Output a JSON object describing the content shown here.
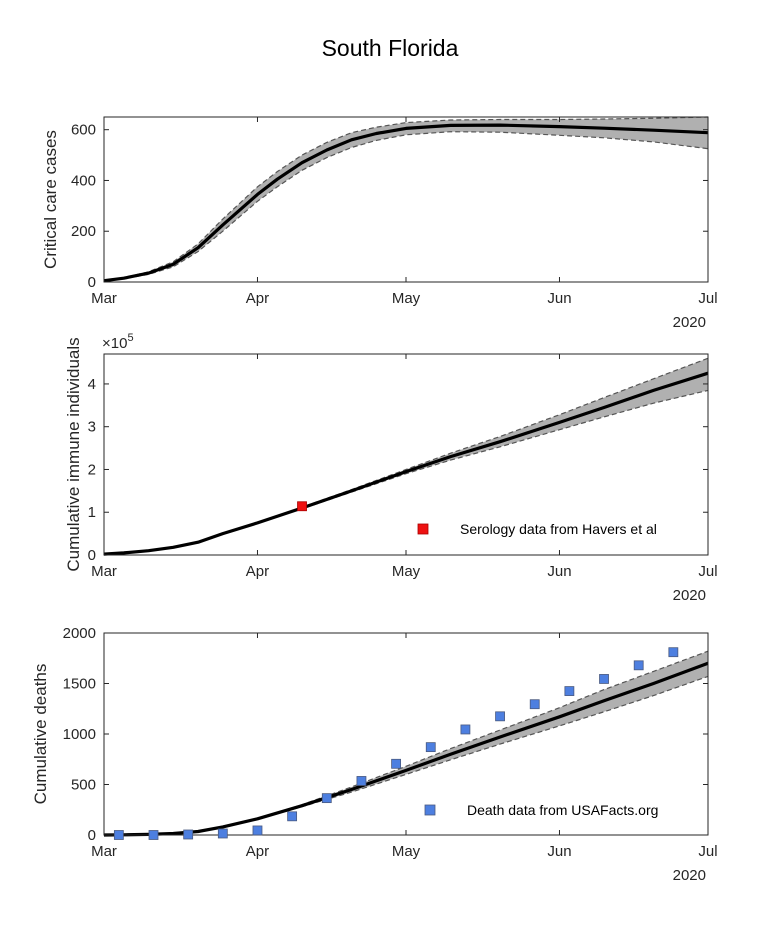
{
  "figure": {
    "title": "South Florida"
  },
  "colors": {
    "band_fill": "#b0b0b0",
    "band_edge": "#555555",
    "median_line": "#000000",
    "serology_marker": "#ee1111",
    "death_marker": "#4d7fe0",
    "axes": "#262626"
  },
  "chart_data": [
    {
      "type": "line",
      "ylabel": "Critical care cases",
      "xlabel": "",
      "x_type": "date",
      "xlim": [
        "2020-03-01",
        "2020-07-01"
      ],
      "ylim": [
        0,
        650
      ],
      "x_ticks": [
        {
          "date": "2020-03-01",
          "label": "Mar"
        },
        {
          "date": "2020-04-01",
          "label": "Apr"
        },
        {
          "date": "2020-05-01",
          "label": "May"
        },
        {
          "date": "2020-06-01",
          "label": "Jun"
        },
        {
          "date": "2020-07-01",
          "label": "Jul"
        }
      ],
      "x_year_label": "2020",
      "y_ticks": [
        0,
        200,
        400,
        600
      ],
      "y_tick_labels": [
        "0",
        "200",
        "400",
        "600"
      ],
      "y_exponent_label": "",
      "grid": false,
      "series": [
        {
          "role": "median",
          "x": [
            "2020-03-01",
            "2020-03-05",
            "2020-03-10",
            "2020-03-15",
            "2020-03-20",
            "2020-03-25",
            "2020-04-01",
            "2020-04-05",
            "2020-04-10",
            "2020-04-15",
            "2020-04-20",
            "2020-04-25",
            "2020-05-01",
            "2020-05-10",
            "2020-05-20",
            "2020-06-01",
            "2020-06-10",
            "2020-06-20",
            "2020-07-01"
          ],
          "y": [
            5,
            15,
            35,
            70,
            135,
            225,
            345,
            405,
            470,
            520,
            560,
            585,
            605,
            617,
            618,
            612,
            606,
            598,
            588
          ]
        },
        {
          "role": "upper",
          "x": [
            "2020-03-01",
            "2020-03-05",
            "2020-03-10",
            "2020-03-15",
            "2020-03-20",
            "2020-03-25",
            "2020-04-01",
            "2020-04-05",
            "2020-04-10",
            "2020-04-15",
            "2020-04-20",
            "2020-04-25",
            "2020-05-01",
            "2020-05-10",
            "2020-05-20",
            "2020-06-01",
            "2020-06-10",
            "2020-06-20",
            "2020-07-01"
          ],
          "y": [
            6,
            17,
            40,
            80,
            150,
            248,
            375,
            435,
            500,
            550,
            588,
            610,
            628,
            638,
            640,
            640,
            642,
            645,
            650
          ]
        },
        {
          "role": "lower",
          "x": [
            "2020-03-01",
            "2020-03-05",
            "2020-03-10",
            "2020-03-15",
            "2020-03-20",
            "2020-03-25",
            "2020-04-01",
            "2020-04-05",
            "2020-04-10",
            "2020-04-15",
            "2020-04-20",
            "2020-04-25",
            "2020-05-01",
            "2020-05-10",
            "2020-05-20",
            "2020-06-01",
            "2020-06-10",
            "2020-06-20",
            "2020-07-01"
          ],
          "y": [
            4,
            13,
            30,
            60,
            120,
            200,
            318,
            375,
            440,
            490,
            530,
            558,
            580,
            592,
            590,
            578,
            568,
            552,
            525
          ]
        }
      ],
      "observations": null
    },
    {
      "type": "line",
      "ylabel": "Cumulative immune individuals",
      "xlabel": "",
      "x_type": "date",
      "xlim": [
        "2020-03-01",
        "2020-07-01"
      ],
      "ylim": [
        0,
        4.7
      ],
      "x_ticks": [
        {
          "date": "2020-03-01",
          "label": "Mar"
        },
        {
          "date": "2020-04-01",
          "label": "Apr"
        },
        {
          "date": "2020-05-01",
          "label": "May"
        },
        {
          "date": "2020-06-01",
          "label": "Jun"
        },
        {
          "date": "2020-07-01",
          "label": "Jul"
        }
      ],
      "x_year_label": "2020",
      "y_ticks": [
        0,
        1,
        2,
        3,
        4
      ],
      "y_tick_labels": [
        "0",
        "1",
        "2",
        "3",
        "4"
      ],
      "y_exponent_label": "×10",
      "y_exponent_power": "5",
      "grid": false,
      "series": [
        {
          "role": "median",
          "x": [
            "2020-03-01",
            "2020-03-05",
            "2020-03-10",
            "2020-03-15",
            "2020-03-20",
            "2020-03-25",
            "2020-04-01",
            "2020-04-10",
            "2020-04-20",
            "2020-05-01",
            "2020-05-10",
            "2020-05-20",
            "2020-06-01",
            "2020-06-10",
            "2020-06-20",
            "2020-07-01"
          ],
          "y": [
            0.02,
            0.05,
            0.1,
            0.18,
            0.3,
            0.5,
            0.75,
            1.1,
            1.5,
            1.95,
            2.3,
            2.65,
            3.1,
            3.45,
            3.85,
            4.25
          ]
        },
        {
          "role": "upper",
          "x": [
            "2020-03-01",
            "2020-03-05",
            "2020-03-10",
            "2020-03-15",
            "2020-03-20",
            "2020-03-25",
            "2020-04-01",
            "2020-04-10",
            "2020-04-20",
            "2020-05-01",
            "2020-05-10",
            "2020-05-20",
            "2020-06-01",
            "2020-06-10",
            "2020-06-20",
            "2020-07-01"
          ],
          "y": [
            0.02,
            0.05,
            0.1,
            0.18,
            0.3,
            0.5,
            0.75,
            1.12,
            1.53,
            2.0,
            2.38,
            2.77,
            3.28,
            3.68,
            4.12,
            4.6
          ]
        },
        {
          "role": "lower",
          "x": [
            "2020-03-01",
            "2020-03-05",
            "2020-03-10",
            "2020-03-15",
            "2020-03-20",
            "2020-03-25",
            "2020-04-01",
            "2020-04-10",
            "2020-04-20",
            "2020-05-01",
            "2020-05-10",
            "2020-05-20",
            "2020-06-01",
            "2020-06-10",
            "2020-06-20",
            "2020-07-01"
          ],
          "y": [
            0.02,
            0.05,
            0.1,
            0.18,
            0.3,
            0.5,
            0.75,
            1.08,
            1.47,
            1.9,
            2.22,
            2.53,
            2.93,
            3.23,
            3.55,
            3.85
          ]
        }
      ],
      "observations": {
        "legend": "Serology data from Havers et al",
        "marker": "square",
        "points": [
          {
            "x": "2020-04-10",
            "y": 1.14
          }
        ]
      }
    },
    {
      "type": "line",
      "ylabel": "Cumulative deaths",
      "xlabel": "",
      "x_type": "date",
      "xlim": [
        "2020-03-01",
        "2020-07-01"
      ],
      "ylim": [
        0,
        2000
      ],
      "x_ticks": [
        {
          "date": "2020-03-01",
          "label": "Mar"
        },
        {
          "date": "2020-04-01",
          "label": "Apr"
        },
        {
          "date": "2020-05-01",
          "label": "May"
        },
        {
          "date": "2020-06-01",
          "label": "Jun"
        },
        {
          "date": "2020-07-01",
          "label": "Jul"
        }
      ],
      "x_year_label": "2020",
      "y_ticks": [
        0,
        500,
        1000,
        1500,
        2000
      ],
      "y_tick_labels": [
        "0",
        "500",
        "1000",
        "1500",
        "2000"
      ],
      "y_exponent_label": "",
      "grid": false,
      "series": [
        {
          "role": "median",
          "x": [
            "2020-03-01",
            "2020-03-05",
            "2020-03-10",
            "2020-03-15",
            "2020-03-20",
            "2020-03-25",
            "2020-04-01",
            "2020-04-10",
            "2020-04-20",
            "2020-05-01",
            "2020-05-10",
            "2020-05-20",
            "2020-06-01",
            "2020-06-10",
            "2020-06-20",
            "2020-07-01"
          ],
          "y": [
            0,
            2,
            6,
            15,
            35,
            80,
            160,
            290,
            450,
            640,
            800,
            970,
            1170,
            1330,
            1500,
            1700
          ]
        },
        {
          "role": "upper",
          "x": [
            "2020-03-01",
            "2020-03-05",
            "2020-03-10",
            "2020-03-15",
            "2020-03-20",
            "2020-03-25",
            "2020-04-01",
            "2020-04-10",
            "2020-04-20",
            "2020-05-01",
            "2020-05-10",
            "2020-05-20",
            "2020-06-01",
            "2020-06-10",
            "2020-06-20",
            "2020-07-01"
          ],
          "y": [
            0,
            2,
            6,
            15,
            35,
            80,
            162,
            300,
            475,
            680,
            855,
            1040,
            1260,
            1440,
            1620,
            1820
          ]
        },
        {
          "role": "lower",
          "x": [
            "2020-03-01",
            "2020-03-05",
            "2020-03-10",
            "2020-03-15",
            "2020-03-20",
            "2020-03-25",
            "2020-04-01",
            "2020-04-10",
            "2020-04-20",
            "2020-05-01",
            "2020-05-10",
            "2020-05-20",
            "2020-06-01",
            "2020-06-10",
            "2020-06-20",
            "2020-07-01"
          ],
          "y": [
            0,
            2,
            6,
            15,
            35,
            80,
            158,
            280,
            425,
            600,
            745,
            900,
            1080,
            1220,
            1380,
            1570
          ]
        }
      ],
      "observations": {
        "legend": "Death data from USAFacts.org",
        "marker": "square",
        "points": [
          {
            "x": "2020-03-04",
            "y": 0
          },
          {
            "x": "2020-03-11",
            "y": 0
          },
          {
            "x": "2020-03-18",
            "y": 5
          },
          {
            "x": "2020-03-25",
            "y": 15
          },
          {
            "x": "2020-04-01",
            "y": 45
          },
          {
            "x": "2020-04-08",
            "y": 185
          },
          {
            "x": "2020-04-15",
            "y": 365
          },
          {
            "x": "2020-04-22",
            "y": 535
          },
          {
            "x": "2020-04-29",
            "y": 705
          },
          {
            "x": "2020-05-06",
            "y": 870
          },
          {
            "x": "2020-05-13",
            "y": 1045
          },
          {
            "x": "2020-05-20",
            "y": 1175
          },
          {
            "x": "2020-05-27",
            "y": 1295
          },
          {
            "x": "2020-06-03",
            "y": 1425
          },
          {
            "x": "2020-06-10",
            "y": 1545
          },
          {
            "x": "2020-06-17",
            "y": 1680
          },
          {
            "x": "2020-06-24",
            "y": 1810
          }
        ]
      }
    }
  ]
}
